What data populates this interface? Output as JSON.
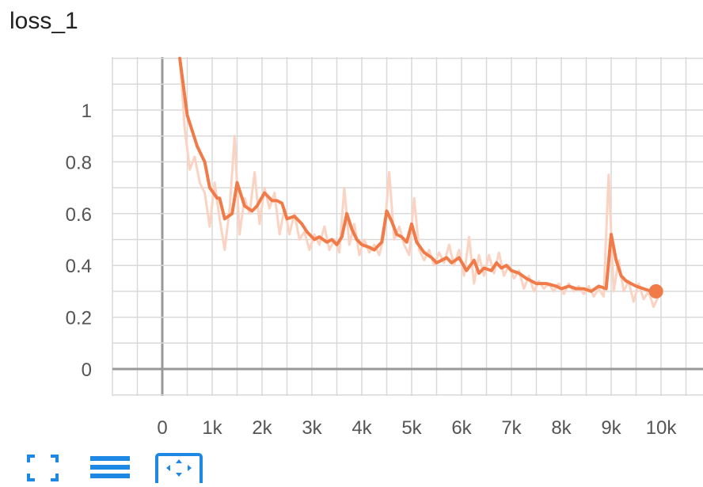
{
  "card": {
    "title": "loss_1"
  },
  "toolbar": {
    "buttons": [
      {
        "icon": "fullscreen-icon",
        "color": "#1e88e5"
      },
      {
        "icon": "list-lines-icon",
        "color": "#1e88e5"
      },
      {
        "icon": "fit-domain-icon",
        "color": "#1e88e5"
      }
    ]
  },
  "chart_data": {
    "type": "line",
    "title": "loss_1",
    "xlabel": "",
    "ylabel": "",
    "xlim": [
      -1000,
      10500
    ],
    "ylim": [
      -0.1,
      1.2
    ],
    "x_ticks": [
      0,
      1000,
      2000,
      3000,
      4000,
      5000,
      6000,
      7000,
      8000,
      9000,
      10000
    ],
    "x_tick_labels": [
      "0",
      "1k",
      "2k",
      "3k",
      "4k",
      "5k",
      "6k",
      "7k",
      "8k",
      "9k",
      "10k"
    ],
    "y_ticks": [
      0,
      0.2,
      0.4,
      0.6,
      0.8,
      1
    ],
    "y_tick_labels": [
      "0",
      "0.2",
      "0.4",
      "0.6",
      "0.8",
      "1"
    ],
    "grid": true,
    "colors": {
      "smoothed": "#f07b48",
      "raw": "#fbd3c2",
      "grid": "#d9d9d9",
      "zero_axis": "#999999"
    },
    "series": [
      {
        "role": "smoothed",
        "x": [
          350,
          500,
          700,
          850,
          950,
          1100,
          1150,
          1250,
          1400,
          1500,
          1650,
          1800,
          1900,
          2050,
          2200,
          2300,
          2400,
          2500,
          2650,
          2800,
          2900,
          3050,
          3150,
          3300,
          3400,
          3500,
          3600,
          3700,
          3800,
          3900,
          4000,
          4150,
          4250,
          4400,
          4500,
          4600,
          4700,
          4800,
          4900,
          5000,
          5100,
          5250,
          5400,
          5500,
          5600,
          5700,
          5800,
          5950,
          6100,
          6250,
          6350,
          6450,
          6600,
          6700,
          6800,
          6900,
          7000,
          7150,
          7300,
          7500,
          7700,
          7900,
          8000,
          8150,
          8300,
          8450,
          8600,
          8750,
          8900,
          9000,
          9100,
          9200,
          9300,
          9400,
          9500,
          9650,
          9800,
          9900
        ],
        "y": [
          1.2,
          0.98,
          0.86,
          0.8,
          0.7,
          0.66,
          0.66,
          0.58,
          0.6,
          0.72,
          0.63,
          0.61,
          0.63,
          0.68,
          0.65,
          0.65,
          0.64,
          0.58,
          0.59,
          0.56,
          0.53,
          0.5,
          0.51,
          0.49,
          0.5,
          0.48,
          0.51,
          0.6,
          0.54,
          0.5,
          0.48,
          0.47,
          0.46,
          0.49,
          0.61,
          0.57,
          0.52,
          0.51,
          0.49,
          0.56,
          0.49,
          0.45,
          0.43,
          0.41,
          0.42,
          0.43,
          0.41,
          0.43,
          0.38,
          0.42,
          0.37,
          0.39,
          0.38,
          0.41,
          0.39,
          0.4,
          0.38,
          0.37,
          0.35,
          0.33,
          0.33,
          0.32,
          0.31,
          0.32,
          0.31,
          0.31,
          0.3,
          0.32,
          0.31,
          0.52,
          0.42,
          0.36,
          0.34,
          0.33,
          0.32,
          0.31,
          0.3,
          0.3
        ]
      },
      {
        "role": "raw",
        "x": [
          350,
          450,
          550,
          650,
          750,
          850,
          950,
          1050,
          1150,
          1250,
          1350,
          1450,
          1550,
          1650,
          1750,
          1850,
          1950,
          2050,
          2150,
          2250,
          2350,
          2450,
          2550,
          2650,
          2750,
          2850,
          2950,
          3050,
          3150,
          3250,
          3350,
          3450,
          3550,
          3650,
          3750,
          3850,
          3950,
          4050,
          4150,
          4250,
          4350,
          4450,
          4550,
          4650,
          4750,
          4850,
          4950,
          5050,
          5150,
          5250,
          5350,
          5450,
          5550,
          5650,
          5750,
          5850,
          5950,
          6050,
          6150,
          6250,
          6350,
          6450,
          6550,
          6650,
          6750,
          6850,
          6950,
          7050,
          7150,
          7250,
          7350,
          7450,
          7550,
          7650,
          7750,
          7850,
          7950,
          8050,
          8150,
          8250,
          8350,
          8450,
          8550,
          8650,
          8750,
          8850,
          8950,
          9050,
          9150,
          9250,
          9350,
          9450,
          9550,
          9650,
          9750,
          9850,
          9950
        ],
        "y": [
          1.2,
          0.93,
          0.77,
          0.82,
          0.72,
          0.68,
          0.55,
          0.72,
          0.58,
          0.46,
          0.62,
          0.9,
          0.52,
          0.66,
          0.6,
          0.76,
          0.56,
          0.7,
          0.62,
          0.68,
          0.52,
          0.62,
          0.52,
          0.6,
          0.5,
          0.53,
          0.46,
          0.52,
          0.48,
          0.55,
          0.46,
          0.5,
          0.45,
          0.7,
          0.48,
          0.56,
          0.44,
          0.5,
          0.45,
          0.48,
          0.44,
          0.52,
          0.76,
          0.5,
          0.55,
          0.48,
          0.44,
          0.66,
          0.46,
          0.42,
          0.46,
          0.4,
          0.45,
          0.41,
          0.48,
          0.4,
          0.46,
          0.36,
          0.51,
          0.33,
          0.44,
          0.36,
          0.44,
          0.37,
          0.45,
          0.36,
          0.4,
          0.35,
          0.38,
          0.31,
          0.36,
          0.3,
          0.34,
          0.31,
          0.33,
          0.3,
          0.33,
          0.29,
          0.33,
          0.3,
          0.32,
          0.29,
          0.32,
          0.28,
          0.31,
          0.28,
          0.75,
          0.3,
          0.42,
          0.3,
          0.34,
          0.26,
          0.33,
          0.27,
          0.3,
          0.24,
          0.28
        ]
      }
    ],
    "last_point": {
      "x": 9900,
      "y": 0.3
    }
  }
}
